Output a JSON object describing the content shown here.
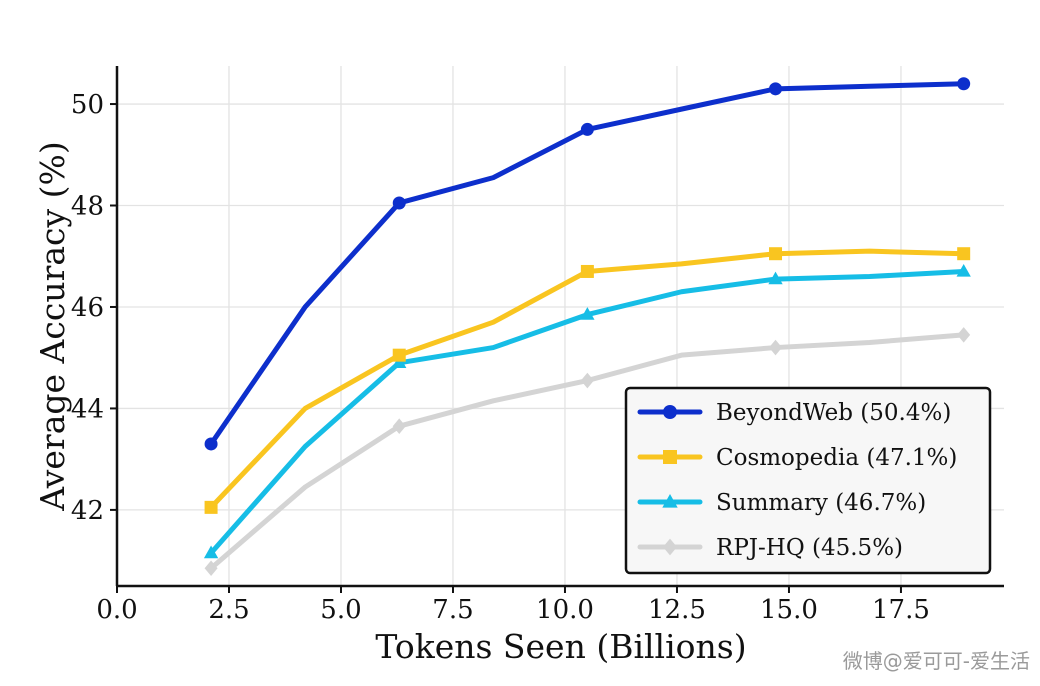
{
  "chart_data": {
    "type": "line",
    "title": "",
    "xlabel": "Tokens Seen (Billions)",
    "ylabel": "Average Accuracy (%)",
    "xlim": [
      0.0,
      19.8
    ],
    "ylim": [
      40.5,
      50.75
    ],
    "xticks": [
      0.0,
      2.5,
      5.0,
      7.5,
      10.0,
      12.5,
      15.0,
      17.5
    ],
    "xtick_labels": [
      "0.0",
      "2.5",
      "5.0",
      "7.5",
      "10.0",
      "12.5",
      "15.0",
      "17.5"
    ],
    "yticks": [
      42,
      44,
      46,
      48,
      50
    ],
    "ytick_labels": [
      "42",
      "44",
      "46",
      "48",
      "50"
    ],
    "grid": true,
    "legend_position": "bottom-right",
    "series": [
      {
        "name": "BeyondWeb (50.4%)",
        "color": "#0d2fcc",
        "marker": "circle",
        "x": [
          2.1,
          4.2,
          6.3,
          8.4,
          10.5,
          12.6,
          14.7,
          16.8,
          18.9
        ],
        "y": [
          43.3,
          46.0,
          48.05,
          48.55,
          49.5,
          49.9,
          50.3,
          50.35,
          50.4
        ],
        "marked": [
          true,
          false,
          true,
          false,
          true,
          false,
          true,
          false,
          true
        ]
      },
      {
        "name": "Cosmopedia (47.1%)",
        "color": "#f9c520",
        "marker": "square",
        "x": [
          2.1,
          4.2,
          6.3,
          8.4,
          10.5,
          12.6,
          14.7,
          16.8,
          18.9
        ],
        "y": [
          42.05,
          44.0,
          45.05,
          45.7,
          46.7,
          46.85,
          47.05,
          47.1,
          47.05
        ],
        "marked": [
          true,
          false,
          true,
          false,
          true,
          false,
          true,
          false,
          true
        ]
      },
      {
        "name": "Summary (46.7%)",
        "color": "#16bde6",
        "marker": "triangle",
        "x": [
          2.1,
          4.2,
          6.3,
          8.4,
          10.5,
          12.6,
          14.7,
          16.8,
          18.9
        ],
        "y": [
          41.15,
          43.25,
          44.9,
          45.2,
          45.85,
          46.3,
          46.55,
          46.6,
          46.7
        ],
        "marked": [
          true,
          false,
          true,
          false,
          true,
          false,
          true,
          false,
          true
        ]
      },
      {
        "name": "RPJ-HQ (45.5%)",
        "color": "#d4d4d4",
        "marker": "diamond",
        "x": [
          2.1,
          4.2,
          6.3,
          8.4,
          10.5,
          12.6,
          14.7,
          16.8,
          18.9
        ],
        "y": [
          40.85,
          42.45,
          43.65,
          44.15,
          44.55,
          45.05,
          45.2,
          45.3,
          45.45
        ],
        "marked": [
          true,
          false,
          true,
          false,
          true,
          false,
          true,
          false,
          true
        ]
      }
    ]
  },
  "watermark": "微博@爱可可-爱生活"
}
